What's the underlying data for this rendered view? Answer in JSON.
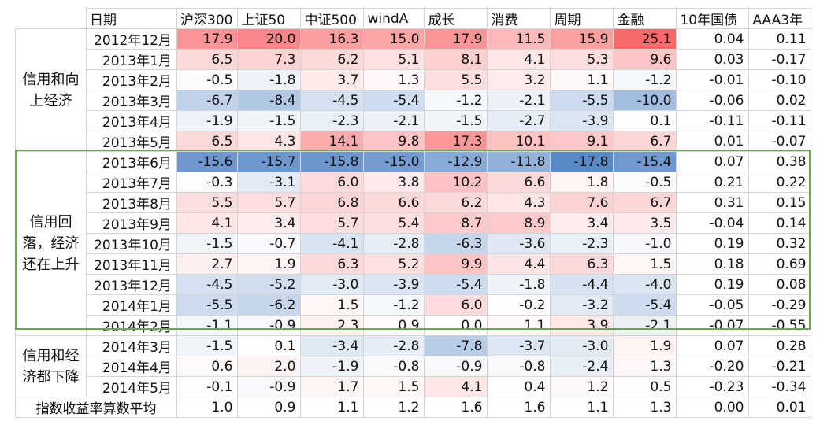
{
  "headers": [
    "日期",
    "沪深300",
    "上证50",
    "中证500",
    "windA",
    "成长",
    "消费",
    "周期",
    "金融",
    "10年国债",
    "AAA3年"
  ],
  "groups": [
    {
      "label": "信用和向上经济",
      "rows": 6
    },
    {
      "label": "信用回落，经济还在上升",
      "rows": 9
    },
    {
      "label": "信用和经济都下降",
      "rows": 3
    }
  ],
  "rows": [
    {
      "date": "2012年12月",
      "values": [
        "17.9",
        "20.0",
        "16.3",
        "15.0",
        "17.9",
        "11.5",
        "15.9",
        "25.1",
        "0.04",
        "0.11"
      ]
    },
    {
      "date": "2013年1月",
      "values": [
        "6.5",
        "7.3",
        "6.2",
        "5.1",
        "8.1",
        "4.1",
        "5.3",
        "9.6",
        "0.03",
        "-0.17"
      ]
    },
    {
      "date": "2013年2月",
      "values": [
        "-0.5",
        "-1.8",
        "3.7",
        "1.3",
        "5.5",
        "3.2",
        "1.1",
        "-1.2",
        "-0.01",
        "-0.10"
      ]
    },
    {
      "date": "2013年3月",
      "values": [
        "-6.7",
        "-8.4",
        "-4.5",
        "-5.4",
        "-1.2",
        "-2.1",
        "-5.5",
        "-10.0",
        "-0.06",
        "0.02"
      ]
    },
    {
      "date": "2013年4月",
      "values": [
        "-1.9",
        "-1.5",
        "-2.3",
        "-2.1",
        "-1.5",
        "-2.7",
        "-3.9",
        "0.1",
        "-0.11",
        "-0.11"
      ]
    },
    {
      "date": "2013年5月",
      "values": [
        "6.5",
        "4.3",
        "14.1",
        "9.8",
        "17.3",
        "10.1",
        "9.1",
        "6.7",
        "0.01",
        "-0.07"
      ]
    },
    {
      "date": "2013年6月",
      "values": [
        "-15.6",
        "-15.7",
        "-15.8",
        "-15.0",
        "-12.9",
        "-11.8",
        "-17.8",
        "-15.4",
        "0.07",
        "0.38"
      ]
    },
    {
      "date": "2013年7月",
      "values": [
        "-0.3",
        "-3.1",
        "6.0",
        "3.8",
        "10.2",
        "6.6",
        "1.8",
        "-0.5",
        "0.21",
        "0.22"
      ]
    },
    {
      "date": "2013年8月",
      "values": [
        "5.5",
        "5.7",
        "6.8",
        "6.6",
        "6.2",
        "4.3",
        "7.6",
        "6.7",
        "0.31",
        "0.15"
      ]
    },
    {
      "date": "2013年9月",
      "values": [
        "4.1",
        "3.4",
        "5.7",
        "5.4",
        "8.7",
        "8.9",
        "3.4",
        "3.5",
        "-0.04",
        "0.14"
      ]
    },
    {
      "date": "2013年10月",
      "values": [
        "-1.5",
        "-0.7",
        "-4.1",
        "-2.8",
        "-6.3",
        "-3.6",
        "-2.3",
        "-1.0",
        "0.19",
        "0.32"
      ]
    },
    {
      "date": "2013年11月",
      "values": [
        "2.7",
        "1.9",
        "6.3",
        "5.2",
        "9.9",
        "4.4",
        "6.3",
        "1.5",
        "0.18",
        "0.69"
      ]
    },
    {
      "date": "2013年12月",
      "values": [
        "-4.5",
        "-5.2",
        "-3.0",
        "-3.9",
        "-5.4",
        "-1.8",
        "-4.4",
        "-4.0",
        "0.19",
        "0.08"
      ]
    },
    {
      "date": "2014年1月",
      "values": [
        "-5.5",
        "-6.2",
        "1.5",
        "-1.2",
        "6.0",
        "-0.2",
        "-3.2",
        "-5.4",
        "-0.05",
        "-0.29"
      ]
    },
    {
      "date": "2014年2月",
      "values": [
        "-1.1",
        "-0.9",
        "2.3",
        "0.9",
        "0.0",
        "1.1",
        "3.9",
        "-2.1",
        "-0.07",
        "-0.55"
      ]
    },
    {
      "date": "2014年3月",
      "values": [
        "-1.5",
        "0.1",
        "-3.4",
        "-2.8",
        "-7.8",
        "-3.7",
        "-3.0",
        "1.9",
        "0.07",
        "0.28"
      ]
    },
    {
      "date": "2014年4月",
      "values": [
        "0.6",
        "2.0",
        "-1.9",
        "-0.8",
        "-0.9",
        "-0.8",
        "-2.4",
        "1.3",
        "-0.20",
        "-0.21"
      ]
    },
    {
      "date": "2014年5月",
      "values": [
        "-0.1",
        "-0.9",
        "1.7",
        "1.5",
        "4.1",
        "0.4",
        "1.2",
        "0.5",
        "-0.23",
        "-0.34"
      ]
    }
  ],
  "footer": {
    "label": "指数收益率算数平均",
    "values": [
      "1.0",
      "0.9",
      "1.1",
      "1.2",
      "1.6",
      "1.6",
      "1.1",
      "1.3",
      "0.00",
      "0.01"
    ]
  },
  "colors": {
    "positive": "#f8696b",
    "negative": "#5a8ac6",
    "neutral": "#ffffff",
    "highlight_border": "#6aa84f",
    "grid": "#d4d4d4"
  }
}
